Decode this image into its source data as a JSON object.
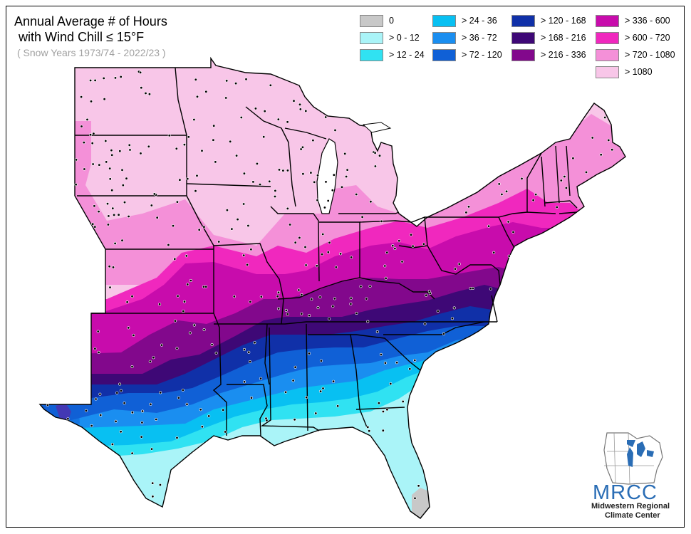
{
  "title_line1": "Annual Average # of Hours",
  "title_line2": "with Wind Chill ≤ 15°F",
  "subtitle": "( Snow Years 1973/74 - 2022/23 )",
  "legend": [
    {
      "label": "0",
      "color": "#c8c8c8"
    },
    {
      "label": "> 0 - 12",
      "color": "#aaf4f8"
    },
    {
      "label": "> 12 - 24",
      "color": "#30e2f2"
    },
    {
      "label": "> 24 - 36",
      "color": "#08c0f2"
    },
    {
      "label": "> 36 - 72",
      "color": "#1a8ef0"
    },
    {
      "label": "> 72 - 120",
      "color": "#1060d6"
    },
    {
      "label": "> 120 - 168",
      "color": "#1030a8"
    },
    {
      "label": "> 168 - 216",
      "color": "#3e0876"
    },
    {
      "label": "> 216 - 336",
      "color": "#82088c"
    },
    {
      "label": "> 336 - 600",
      "color": "#c80cac"
    },
    {
      "label": "> 600 - 720",
      "color": "#f028be"
    },
    {
      "label": "> 720 - 1080",
      "color": "#f490d8"
    },
    {
      "label": "> 1080",
      "color": "#f8c6e8"
    }
  ],
  "logo": {
    "acronym": "MRCC",
    "line1": "Midwestern Regional",
    "line2": "Climate Center",
    "color": "#2a6db5"
  }
}
